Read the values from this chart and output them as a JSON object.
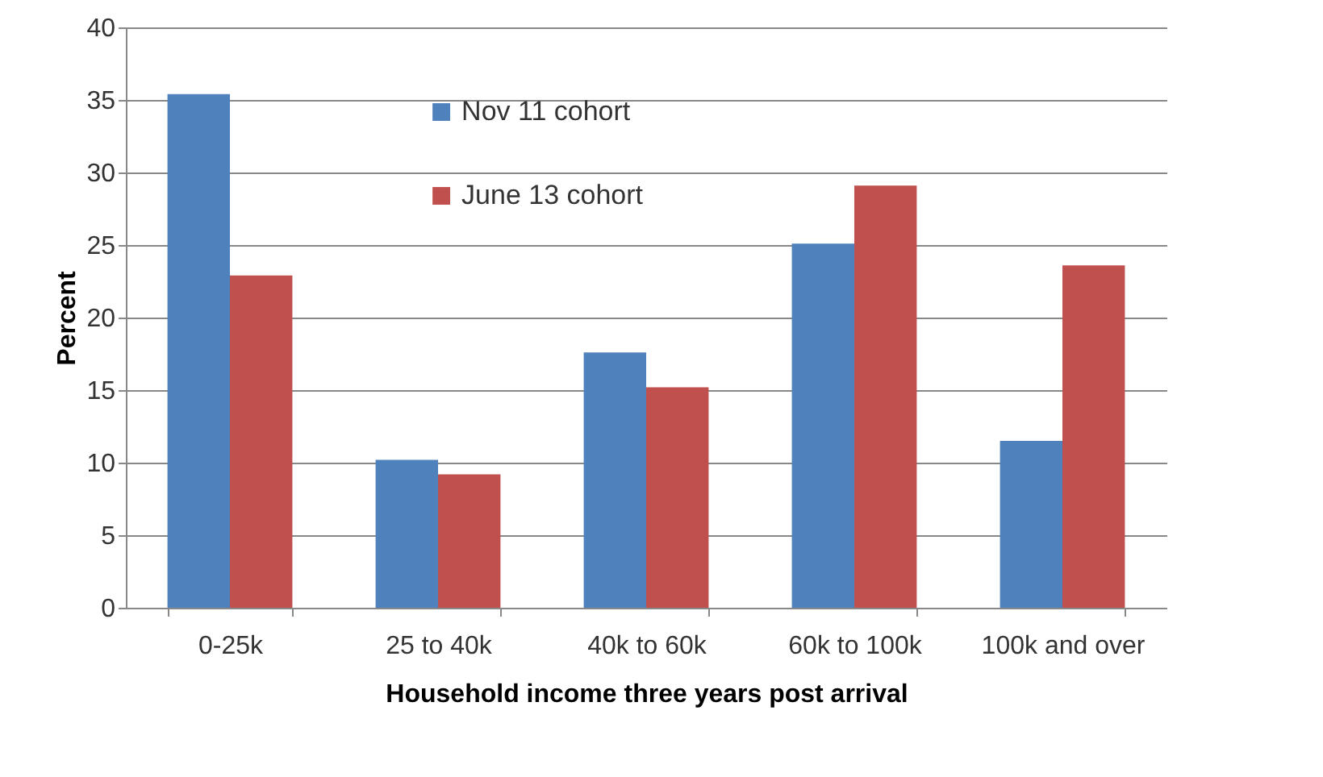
{
  "chart_data": {
    "type": "bar",
    "xlabel": "Household income three years post arrival",
    "ylabel": "Percent",
    "categories": [
      "0-25k",
      "25 to 40k",
      "40k to 60k",
      "60k to 100k",
      "100k and over"
    ],
    "series": [
      {
        "name": "Nov 11 cohort",
        "color": "#4f81bd",
        "values": [
          35.4,
          10.2,
          17.6,
          25.1,
          11.5
        ]
      },
      {
        "name": "June 13 cohort",
        "color": "#c0504d",
        "values": [
          22.9,
          9.2,
          15.2,
          29.1,
          23.6
        ]
      }
    ],
    "ylim": [
      0,
      40
    ],
    "yticks": [
      0,
      5,
      10,
      15,
      20,
      25,
      30,
      35,
      40
    ],
    "grid": "y",
    "legend": "top"
  }
}
